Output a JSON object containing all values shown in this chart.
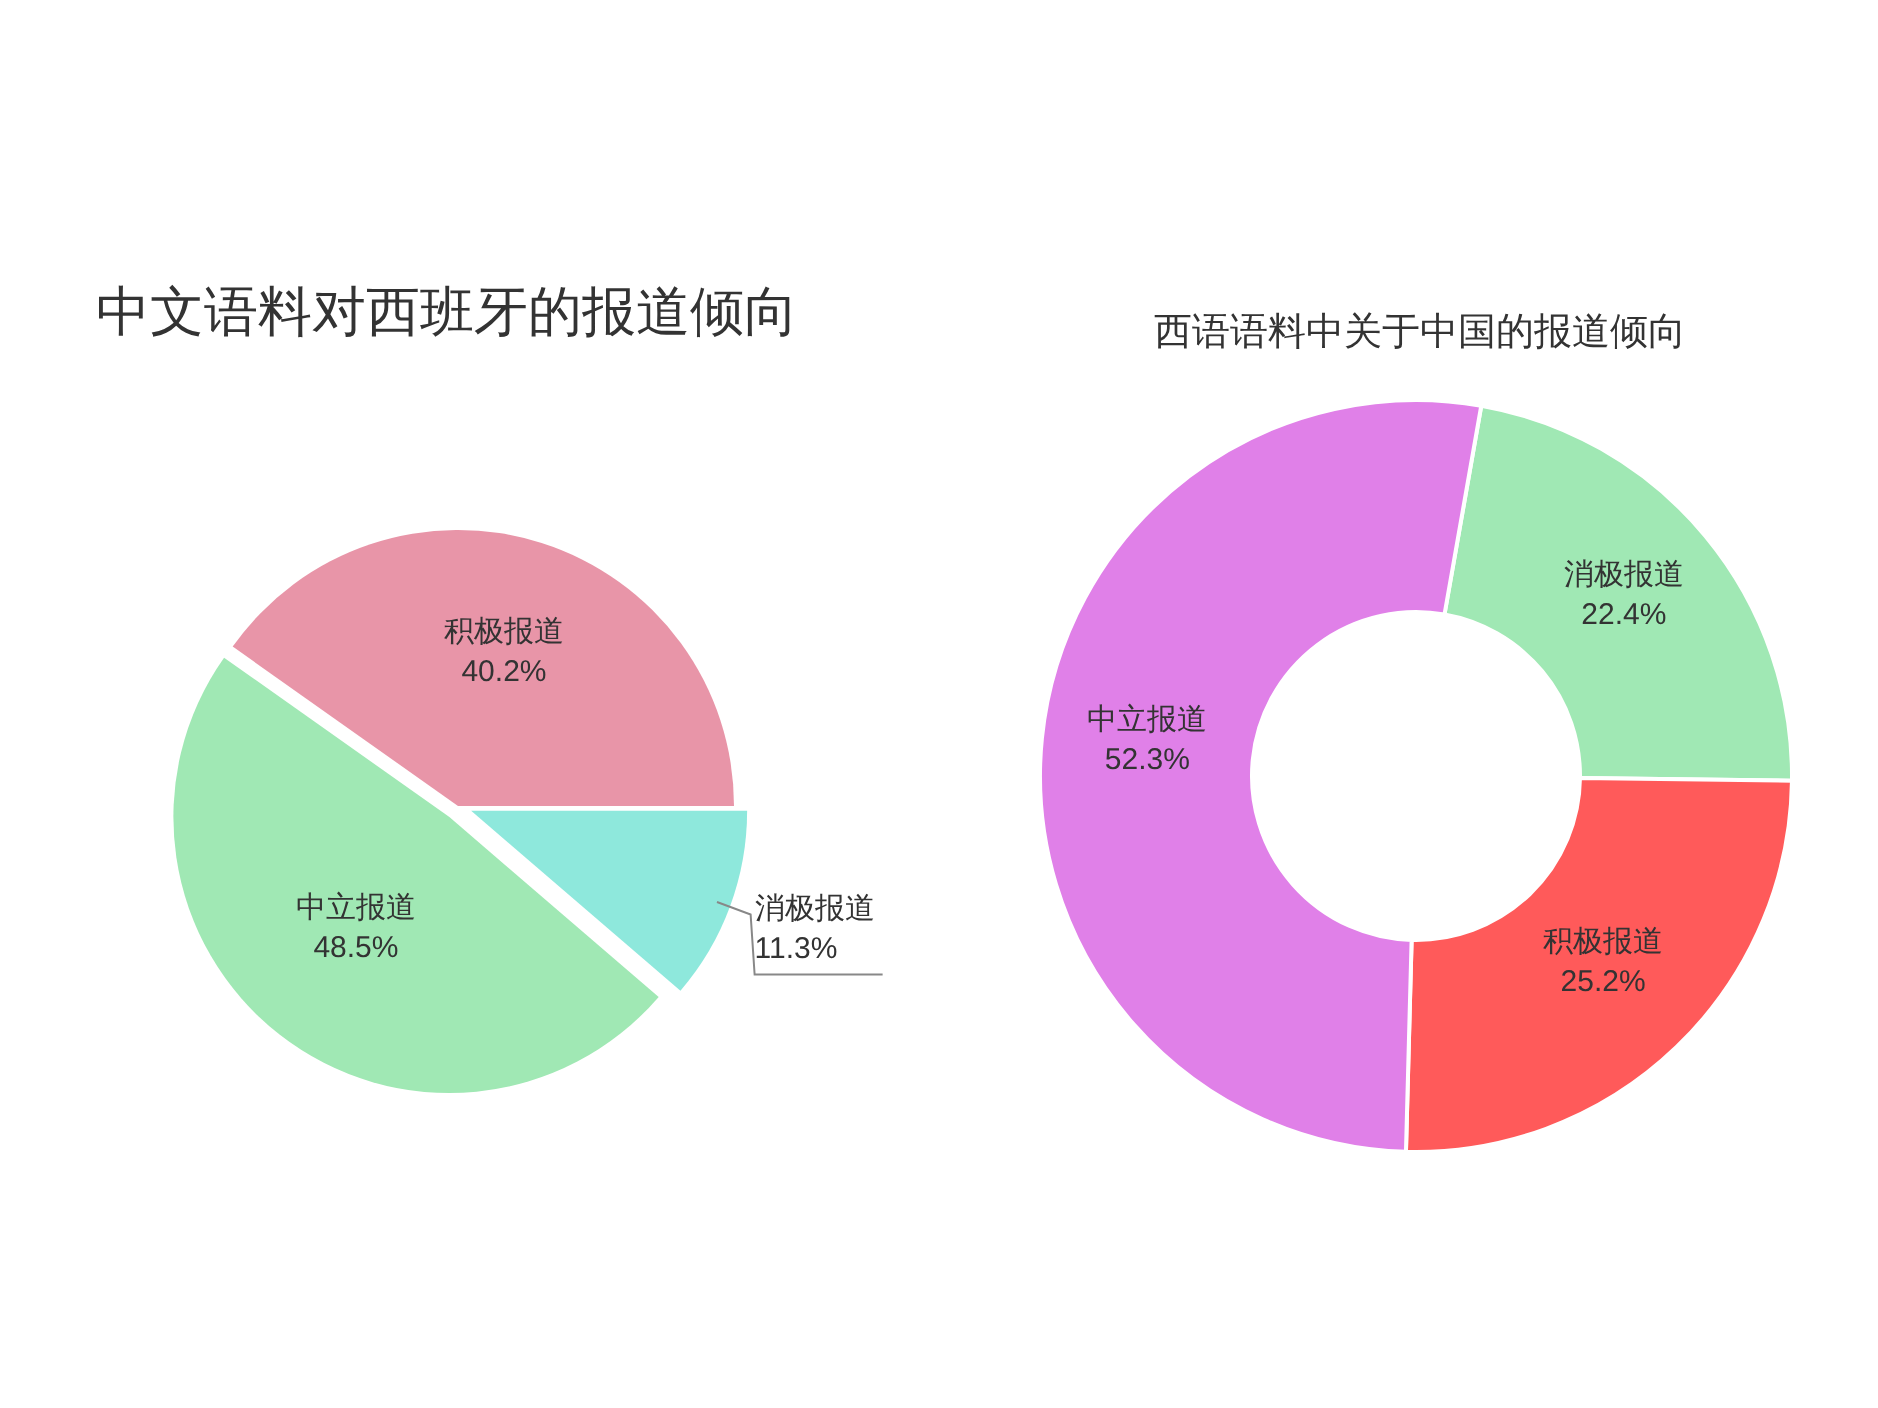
{
  "chart_data": [
    {
      "type": "pie",
      "title": "中文语料对西班牙的报道倾向",
      "categories": [
        "积极报道",
        "中立报道",
        "消极报道"
      ],
      "values": [
        40.2,
        48.5,
        11.3
      ],
      "colors": [
        "#e895a8",
        "#a0e8b4",
        "#8ee8dc"
      ],
      "value_labels": [
        "40.2%",
        "48.5%",
        "11.3%"
      ]
    },
    {
      "type": "donut",
      "title": "西语语料中关于中国的报道倾向",
      "categories": [
        "消极报道",
        "积极报道",
        "中立报道"
      ],
      "values": [
        22.4,
        25.2,
        52.3
      ],
      "colors": [
        "#a0e8b4",
        "#ff5a5a",
        "#e080e8"
      ],
      "value_labels": [
        "22.4%",
        "25.2%",
        "52.3%"
      ]
    }
  ]
}
